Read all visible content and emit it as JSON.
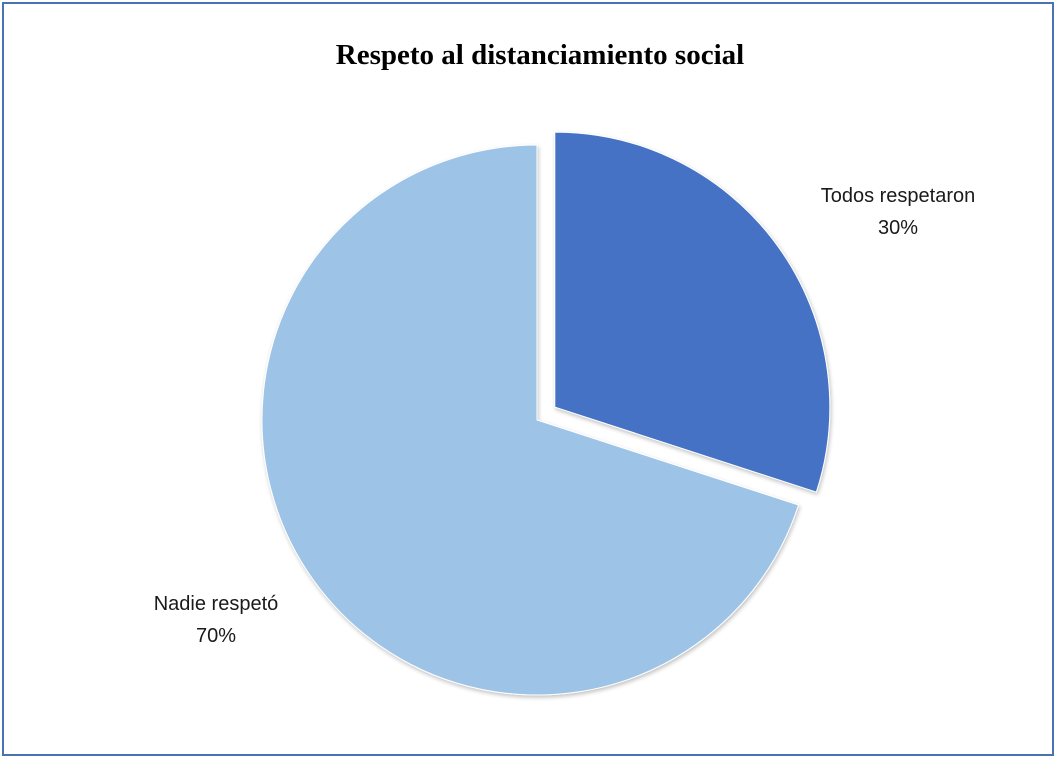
{
  "chart_data": {
    "type": "pie",
    "title": "Respeto al distanciamiento social",
    "categories": [
      "Todos respetaron",
      "Nadie respetó"
    ],
    "values": [
      30,
      70
    ],
    "value_labels": [
      "30%",
      "70%"
    ],
    "colors": [
      "#4472c4",
      "#9dc3e6"
    ],
    "exploded": [
      true,
      false
    ],
    "legend": "none"
  }
}
